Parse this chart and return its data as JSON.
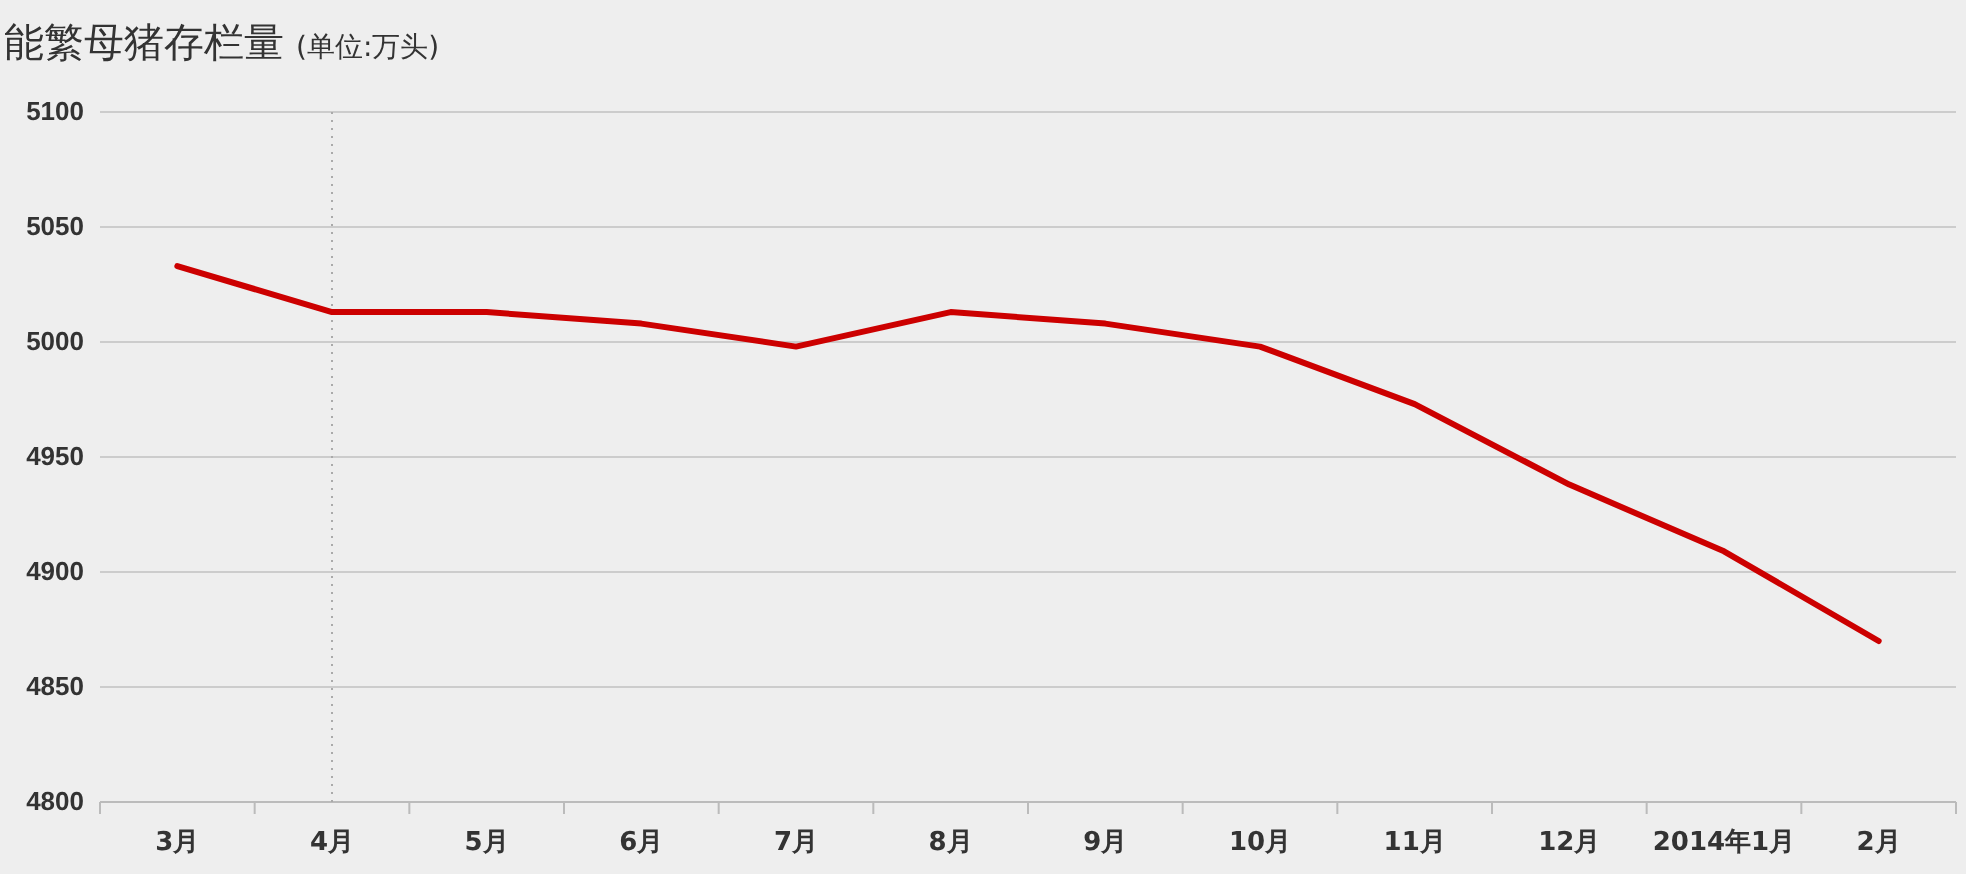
{
  "chart_data": {
    "type": "line",
    "title": "能繁母猪存栏量",
    "subtitle": "(单位:万头)",
    "categories": [
      "3月",
      "4月",
      "5月",
      "6月",
      "7月",
      "8月",
      "9月",
      "10月",
      "11月",
      "12月",
      "2014年1月",
      "2月"
    ],
    "series": [
      {
        "color": "#cc0000",
        "values": [
          5033,
          5013,
          5013,
          5008,
          4998,
          5013,
          5008,
          4998,
          4973,
          4938,
          4909,
          4870
        ]
      }
    ],
    "ylim": [
      4800,
      5100
    ],
    "yticks": [
      4800,
      4850,
      4900,
      4950,
      5000,
      5050,
      5100
    ],
    "grid": "y",
    "marker": "none",
    "line_style": "solid",
    "ref_lines": [
      {
        "axis": "x",
        "value": "4月",
        "color": "#aaaaaa",
        "line_style": "dotted"
      }
    ]
  }
}
